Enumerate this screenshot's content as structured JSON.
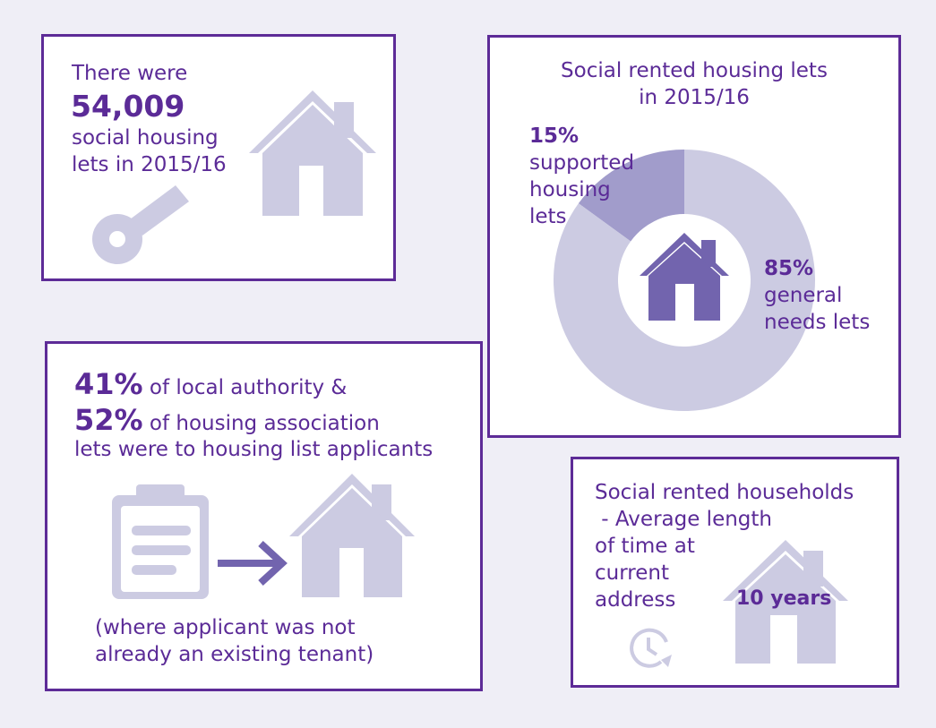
{
  "colors": {
    "background": "#efeef6",
    "border": "#5d2b97",
    "text": "#5b2b97",
    "light_icon": "#cccbe2",
    "dark_icon": "#7264ae",
    "mid_segment": "#a19ccb"
  },
  "panel_lets": {
    "line1": "There were",
    "number": "54,009",
    "line3": "social housing",
    "line4": "lets in 2015/16",
    "icons": [
      "house-icon",
      "key-icon"
    ]
  },
  "panel_donut": {
    "title_line1": "Social rented housing lets",
    "title_line2": "in 2015/16",
    "supported_pct": "15%",
    "supported_line1": "supported",
    "supported_line2": "housing",
    "supported_line3": "lets",
    "general_pct": "85%",
    "general_line1": "general",
    "general_line2": "needs lets",
    "icons": [
      "house-icon"
    ]
  },
  "chart_data": {
    "type": "pie",
    "title": "Social rented housing lets in 2015/16",
    "categories": [
      "supported housing lets",
      "general needs lets"
    ],
    "values": [
      15,
      85
    ],
    "unit": "%",
    "colors": [
      "#a19ccb",
      "#cccbe2"
    ]
  },
  "panel_applicants": {
    "pct_la": "41%",
    "text_la": " of local authority &",
    "pct_ha": "52%",
    "text_ha": " of housing association",
    "line3": "lets were to housing list applicants",
    "note_line1": "(where applicant was not",
    "note_line2": "already an existing tenant)",
    "icons": [
      "clipboard-icon",
      "arrow-right-icon",
      "house-icon"
    ]
  },
  "panel_tenure": {
    "line1": "Social rented households",
    "line2": " - Average length",
    "line3": "of time at",
    "line4": "current",
    "line5": "address",
    "value": "10 years",
    "icons": [
      "clock-icon",
      "house-icon"
    ]
  }
}
